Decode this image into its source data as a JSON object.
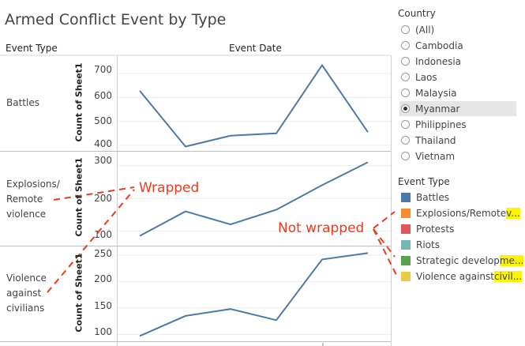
{
  "title": "Armed Conflict Event by Type",
  "headers": {
    "event_type": "Event Type",
    "event_date": "Event Date"
  },
  "rows": [
    {
      "label_lines": [
        "Battles"
      ],
      "ylabel": "Count of Sheet1",
      "ticks": [
        "700",
        "600",
        "500",
        "400"
      ]
    },
    {
      "label_lines": [
        "Explosions/",
        "Remote",
        "violence"
      ],
      "ylabel": "Count of Sheet1",
      "ticks": [
        "300",
        "200",
        "100"
      ]
    },
    {
      "label_lines": [
        "Violence",
        "against",
        "civilians"
      ],
      "ylabel": "Count of Sheet1",
      "ticks": [
        "250",
        "200",
        "150",
        "100"
      ]
    }
  ],
  "chart_data": [
    {
      "type": "line",
      "ylabel": "Count of Sheet1",
      "ylim": [
        380,
        750
      ],
      "values": [
        628,
        395,
        440,
        450,
        735,
        455
      ],
      "color": "#4e79a7"
    },
    {
      "type": "line",
      "ylabel": "Count of Sheet1",
      "ylim": [
        60,
        340
      ],
      "values": [
        85,
        160,
        120,
        165,
        240,
        310
      ],
      "color": "#4e79a7"
    },
    {
      "type": "line",
      "ylabel": "Count of Sheet1",
      "ylim": [
        90,
        265
      ],
      "values": [
        97,
        135,
        148,
        127,
        242,
        254
      ],
      "color": "#4e79a7"
    }
  ],
  "country_filter": {
    "title": "Country",
    "options": [
      "(All)",
      "Cambodia",
      "Indonesia",
      "Laos",
      "Malaysia",
      "Myanmar",
      "Philippines",
      "Thailand",
      "Vietnam"
    ],
    "selected": "Myanmar"
  },
  "legend": {
    "title": "Event Type",
    "items": [
      {
        "parts": [
          "Battles"
        ],
        "color": "#4e79a7"
      },
      {
        "parts": [
          "Explosions/Remote ",
          "v..."
        ],
        "color": "#f28e2b"
      },
      {
        "parts": [
          "Protests"
        ],
        "color": "#e15759"
      },
      {
        "parts": [
          "Riots"
        ],
        "color": "#76b7b2"
      },
      {
        "parts": [
          "Strategic develop",
          "me..."
        ],
        "color": "#59a14f"
      },
      {
        "parts": [
          "Violence against ",
          "civil..."
        ],
        "color": "#edc948"
      }
    ]
  },
  "annotations": {
    "wrapped": "Wrapped",
    "not_wrapped": "Not wrapped",
    "color": "#ee3a1c"
  }
}
